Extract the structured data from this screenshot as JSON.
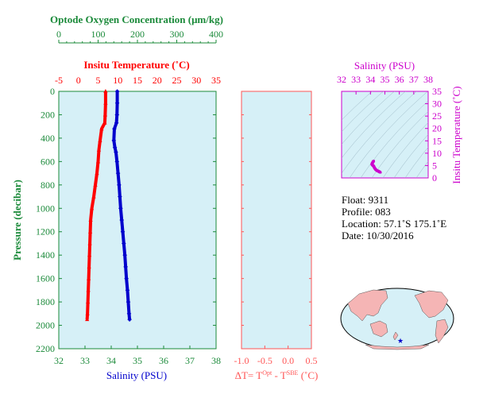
{
  "colors": {
    "oxygen": "#1b8a3a",
    "temperature": "#ff0000",
    "salinity": "#0000cc",
    "ts": "#cc00cc",
    "delta": "#ff5555",
    "panel_bg": "#d6f0f7",
    "axis_green": "#1b8a3a"
  },
  "labels": {
    "oxygen_title": "Optode Oxygen Concentration (μm/kg)",
    "temperature_title": "Insitu Temperature (˚C)",
    "salinity_title": "Salinity (PSU)",
    "pressure_title": "Pressure (decibar)",
    "ts_salinity_title": "Salinity (PSU)",
    "ts_temperature_title": "Insitu Temperature (˚C)",
    "delta_prefix": "ΔT= T",
    "delta_sup1": "Opt",
    "delta_mid": " - T",
    "delta_sup2": "SBE",
    "delta_suffix": " (˚C)"
  },
  "info": {
    "float": "Float:  9311",
    "profile": "Profile:  083",
    "location": "Location:  57.1˚S  175.1˚E",
    "date": "Date:  10/30/2016"
  },
  "chart_data": [
    {
      "type": "line",
      "title": "",
      "ylabel": "Pressure (decibar)",
      "ylim": [
        2200,
        0
      ],
      "y_ticks": [
        0,
        200,
        400,
        600,
        800,
        1000,
        1200,
        1400,
        1600,
        1800,
        2000,
        2200
      ],
      "axes": {
        "oxygen": {
          "label": "Optode Oxygen Concentration (μm/kg)",
          "range": [
            0,
            400
          ],
          "ticks": [
            0,
            100,
            200,
            300,
            400
          ]
        },
        "temperature": {
          "label": "Insitu Temperature (˚C)",
          "range": [
            -5,
            35
          ],
          "ticks": [
            -5,
            0,
            5,
            10,
            15,
            20,
            25,
            30,
            35
          ]
        },
        "salinity": {
          "label": "Salinity (PSU)",
          "range": [
            32,
            38
          ],
          "ticks": [
            32,
            33,
            34,
            35,
            36,
            37,
            38
          ]
        }
      },
      "series": [
        {
          "name": "Insitu Temperature (˚C)",
          "axis": "temperature",
          "values": [
            [
              6.9,
              0
            ],
            [
              6.9,
              100
            ],
            [
              6.8,
              200
            ],
            [
              6.7,
              270
            ],
            [
              5.9,
              320
            ],
            [
              5.5,
              420
            ],
            [
              5.2,
              500
            ],
            [
              5.0,
              600
            ],
            [
              4.7,
              700
            ],
            [
              4.3,
              800
            ],
            [
              3.9,
              900
            ],
            [
              3.4,
              1000
            ],
            [
              3.1,
              1100
            ],
            [
              3.0,
              1200
            ],
            [
              2.9,
              1300
            ],
            [
              2.8,
              1400
            ],
            [
              2.7,
              1500
            ],
            [
              2.6,
              1600
            ],
            [
              2.5,
              1700
            ],
            [
              2.4,
              1800
            ],
            [
              2.3,
              1900
            ],
            [
              2.2,
              1950
            ]
          ]
        },
        {
          "name": "Salinity (PSU)",
          "axis": "salinity",
          "values": [
            [
              34.23,
              0
            ],
            [
              34.23,
              100
            ],
            [
              34.22,
              200
            ],
            [
              34.2,
              270
            ],
            [
              34.12,
              320
            ],
            [
              34.1,
              420
            ],
            [
              34.14,
              480
            ],
            [
              34.18,
              520
            ],
            [
              34.22,
              600
            ],
            [
              34.26,
              700
            ],
            [
              34.3,
              800
            ],
            [
              34.33,
              900
            ],
            [
              34.36,
              1000
            ],
            [
              34.4,
              1100
            ],
            [
              34.44,
              1200
            ],
            [
              34.48,
              1300
            ],
            [
              34.52,
              1400
            ],
            [
              34.55,
              1500
            ],
            [
              34.58,
              1600
            ],
            [
              34.62,
              1700
            ],
            [
              34.65,
              1800
            ],
            [
              34.68,
              1900
            ],
            [
              34.7,
              1950
            ]
          ]
        }
      ]
    },
    {
      "type": "scatter",
      "xlabel": "ΔT= T^Opt - T^SBE (˚C)",
      "xlim": [
        -1.0,
        0.5
      ],
      "x_ticks": [
        "-1.0",
        "-0.5",
        "0.0",
        "0.5"
      ],
      "ylim": [
        2200,
        0
      ],
      "series": []
    },
    {
      "type": "scatter",
      "xlabel": "Salinity (PSU)",
      "ylabel": "Insitu Temperature (˚C)",
      "xlim": [
        32,
        38
      ],
      "ylim": [
        0,
        35
      ],
      "x_ticks": [
        32,
        33,
        34,
        35,
        36,
        37,
        38
      ],
      "y_ticks": [
        0,
        5,
        10,
        15,
        20,
        25,
        30,
        35
      ],
      "series": [
        {
          "name": "T-S",
          "values": [
            [
              34.23,
              6.9
            ],
            [
              34.22,
              6.8
            ],
            [
              34.2,
              6.7
            ],
            [
              34.12,
              5.9
            ],
            [
              34.1,
              5.5
            ],
            [
              34.14,
              5.2
            ],
            [
              34.18,
              5.0
            ],
            [
              34.22,
              4.8
            ],
            [
              34.26,
              4.3
            ],
            [
              34.3,
              3.9
            ],
            [
              34.36,
              3.4
            ],
            [
              34.44,
              3.0
            ],
            [
              34.52,
              2.8
            ],
            [
              34.58,
              2.6
            ],
            [
              34.65,
              2.4
            ],
            [
              34.7,
              2.2
            ]
          ]
        }
      ]
    }
  ]
}
